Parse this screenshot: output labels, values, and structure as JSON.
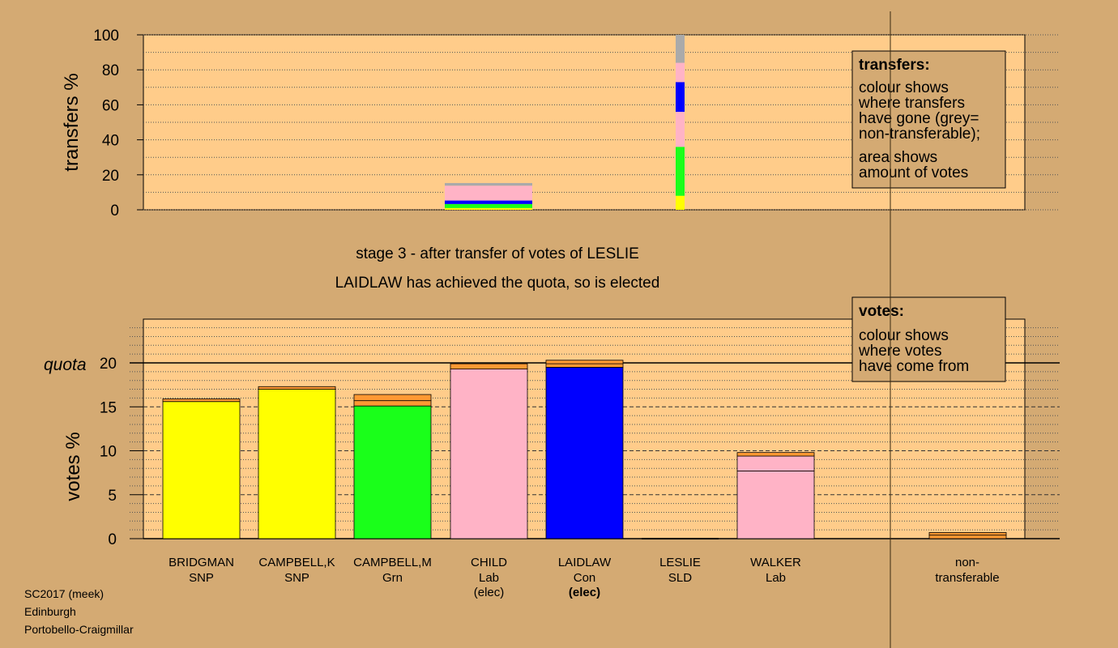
{
  "colors": {
    "background": "#d4aa73",
    "plot": "#ffcc8a",
    "SNP": "#ffff00",
    "Grn": "#1aff1a",
    "Lab": "#ffb3c6",
    "Con": "#0000ff",
    "SLD": "#ff9933",
    "nontransferable": "#aaaaaa"
  },
  "chart_data": [
    {
      "type": "bar",
      "title": "transfers",
      "ylabel": "transfers %",
      "ylim": [
        0,
        100
      ],
      "yticks": [
        "0",
        "20",
        "40",
        "60",
        "80",
        "100"
      ],
      "grid": true,
      "bars": [
        {
          "candidate": "CAMPBELL,M",
          "segments": [
            {
              "party": "SNP",
              "value": 1
            },
            {
              "party": "Grn",
              "value": 2.3
            },
            {
              "party": "Con",
              "value": 2
            },
            {
              "party": "Lab",
              "value": 8.5
            },
            {
              "party": "nontransferable",
              "value": 1.5
            }
          ]
        },
        {
          "candidate": "LESLIE",
          "segments": [
            {
              "party": "SNP",
              "value": 8
            },
            {
              "party": "Grn",
              "value": 28
            },
            {
              "party": "Lab",
              "value": 20
            },
            {
              "party": "Con",
              "value": 17
            },
            {
              "party": "Lab",
              "value": 11
            },
            {
              "party": "nontransferable",
              "value": 16
            }
          ]
        }
      ],
      "legend": {
        "title": "transfers:",
        "lines": [
          "colour shows",
          "where transfers",
          "have gone (grey=",
          "non-transferable);"
        ],
        "lines2": [
          "area shows",
          "amount of votes"
        ]
      }
    },
    {
      "type": "bar",
      "title": "votes",
      "ylabel": "votes %",
      "ylim": [
        0,
        25
      ],
      "yticks": [
        "0",
        "5",
        "10",
        "15",
        "20"
      ],
      "quota": 20,
      "quota_label": "quota",
      "grid": true,
      "categories": [
        "BRIDGMAN",
        "CAMPBELL,K",
        "CAMPBELL,M",
        "CHILD",
        "LAIDLAW",
        "LESLIE",
        "WALKER"
      ],
      "candidates": [
        {
          "name": "BRIDGMAN",
          "party": "SNP",
          "status": "",
          "segments": [
            {
              "party": "SNP",
              "value": 15.6
            },
            {
              "party": "SLD",
              "value": 0.3
            }
          ]
        },
        {
          "name": "CAMPBELL,K",
          "party": "SNP",
          "status": "",
          "segments": [
            {
              "party": "SNP",
              "value": 17.0
            },
            {
              "party": "SLD",
              "value": 0.3
            }
          ]
        },
        {
          "name": "CAMPBELL,M",
          "party": "Grn",
          "status": "",
          "segments": [
            {
              "party": "Grn",
              "value": 15.1
            },
            {
              "party": "SLD",
              "value": 0.6
            },
            {
              "party": "SLD",
              "value": 0.7
            }
          ]
        },
        {
          "name": "CHILD",
          "party": "Lab",
          "status": "(elec)",
          "segments": [
            {
              "party": "Lab",
              "value": 19.3
            },
            {
              "party": "SLD",
              "value": 0.6
            }
          ]
        },
        {
          "name": "LAIDLAW",
          "party": "Con",
          "status": "(elec)",
          "segments": [
            {
              "party": "Con",
              "value": 19.5
            },
            {
              "party": "SLD",
              "value": 0.4
            },
            {
              "party": "SLD",
              "value": 0.4
            }
          ]
        },
        {
          "name": "LESLIE",
          "party": "SLD",
          "status": "",
          "segments": []
        },
        {
          "name": "WALKER",
          "party": "Lab",
          "status": "",
          "segments": [
            {
              "party": "Lab",
              "value": 7.7
            },
            {
              "party": "Lab",
              "value": 1.7
            },
            {
              "party": "SLD",
              "value": 0.4
            }
          ]
        }
      ],
      "nontransferable": {
        "label1": "non-",
        "label2": "transferable",
        "segments": [
          {
            "party": "SLD",
            "value": 0.4
          },
          {
            "party": "SLD",
            "value": 0.3
          }
        ]
      },
      "legend": {
        "title": "votes:",
        "lines": [
          "colour shows",
          "where votes",
          "have come from"
        ]
      }
    }
  ],
  "stage_title": "stage 3 - after transfer of votes of LESLIE",
  "stage_note": "LAIDLAW has achieved the quota, so is elected",
  "footer": {
    "line1": "SC2017 (meek)",
    "line2": "Edinburgh",
    "line3": "Portobello-Craigmillar"
  }
}
